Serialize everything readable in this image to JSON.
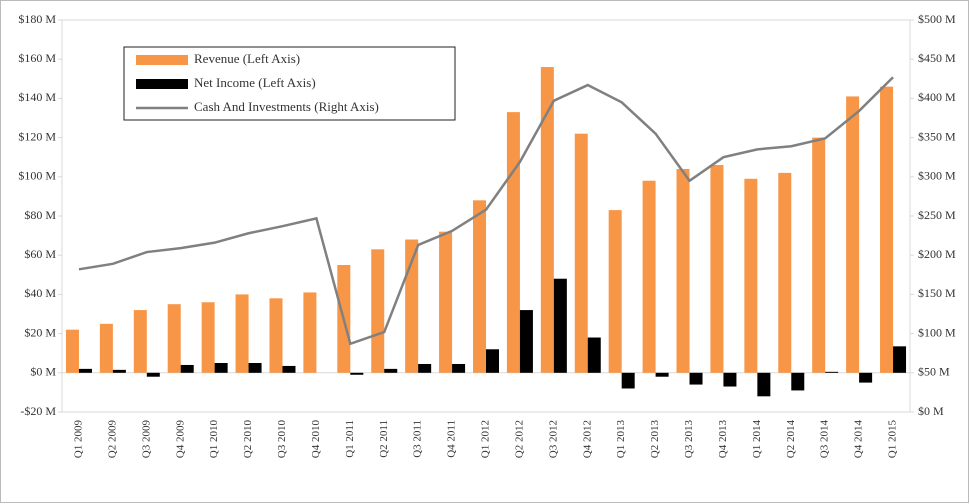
{
  "chart_data": {
    "type": "bar_line",
    "categories": [
      "Q1 2009",
      "Q2 2009",
      "Q3 2009",
      "Q4 2009",
      "Q1 2010",
      "Q2 2010",
      "Q3 2010",
      "Q4 2010",
      "Q1 2011",
      "Q2 2011",
      "Q3 2011",
      "Q4 2011",
      "Q1 2012",
      "Q2 2012",
      "Q3 2012",
      "Q4 2012",
      "Q1 2013",
      "Q2 2013",
      "Q3 2013",
      "Q4 2013",
      "Q1 2014",
      "Q2 2014",
      "Q3 2014",
      "Q4 2014",
      "Q1 2015"
    ],
    "series": [
      {
        "name": "Revenue (Left Axis)",
        "color": "#f79646",
        "kind": "bar",
        "values": [
          22,
          25,
          32,
          35,
          36,
          40,
          38,
          41,
          55,
          63,
          68,
          72,
          88,
          133,
          156,
          122,
          83,
          98,
          104,
          106,
          99,
          102,
          120,
          141,
          146
        ]
      },
      {
        "name": "Net Income (Left Axis)",
        "color": "#000000",
        "kind": "bar",
        "values": [
          2,
          1.5,
          -2,
          4,
          5,
          5,
          3.5,
          0,
          -1,
          2,
          4.5,
          4.5,
          12,
          32,
          48,
          18,
          -8,
          -2,
          -6,
          -7,
          -12,
          -9,
          0.5,
          -5,
          13.5
        ]
      },
      {
        "name": "Cash And Investments (Right Axis)",
        "color": "#808080",
        "kind": "line",
        "axis": "y2",
        "values": [
          182,
          189,
          204,
          209,
          216,
          228,
          237,
          247,
          87,
          102,
          213,
          231,
          258,
          319,
          397,
          417,
          395,
          355,
          295,
          325,
          335,
          339,
          349,
          384,
          427
        ]
      }
    ],
    "ylim": [
      -20,
      180
    ],
    "yticks": [
      {
        "value": -20,
        "label": "-$20 M"
      },
      {
        "value": 0,
        "label": "$0 M"
      },
      {
        "value": 20,
        "label": "$20 M"
      },
      {
        "value": 40,
        "label": "$40 M"
      },
      {
        "value": 60,
        "label": "$60 M"
      },
      {
        "value": 80,
        "label": "$80 M"
      },
      {
        "value": 100,
        "label": "$100 M"
      },
      {
        "value": 120,
        "label": "$120 M"
      },
      {
        "value": 140,
        "label": "$140 M"
      },
      {
        "value": 160,
        "label": "$160 M"
      },
      {
        "value": 180,
        "label": "$180 M"
      }
    ],
    "y2lim": [
      0,
      500
    ],
    "y2ticks": [
      {
        "value": 0,
        "label": "$0 M"
      },
      {
        "value": 50,
        "label": "$50 M"
      },
      {
        "value": 100,
        "label": "$100 M"
      },
      {
        "value": 150,
        "label": "$150 M"
      },
      {
        "value": 200,
        "label": "$200 M"
      },
      {
        "value": 250,
        "label": "$250 M"
      },
      {
        "value": 300,
        "label": "$300 M"
      },
      {
        "value": 350,
        "label": "$350 M"
      },
      {
        "value": 400,
        "label": "$400 M"
      },
      {
        "value": 450,
        "label": "$450 M"
      },
      {
        "value": 500,
        "label": "$500 M"
      }
    ],
    "legend": "top-left"
  }
}
